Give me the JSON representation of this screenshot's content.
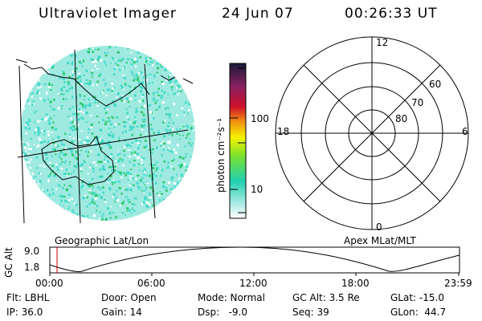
{
  "header": {
    "title": "Ultraviolet Imager",
    "date": "24 Jun 07",
    "time": "00:26:33 UT"
  },
  "colors": {
    "aurora_light": "#9eeae0",
    "aurora_cyan": "#3fd9c8",
    "aurora_green": "#2ec96e",
    "outline": "#000000",
    "cursor": "#d40000"
  },
  "colorbar": {
    "unit_label": "photon cm⁻²s⁻¹",
    "tick_100": "100",
    "tick_10": "10",
    "stops": [
      "#1a1a3a",
      "#8a2060",
      "#d0102a",
      "#f08a10",
      "#f4f400",
      "#78e030",
      "#20d0b0",
      "#a6eae2",
      "#ffffff"
    ]
  },
  "geo_panel": {
    "label": "Geographic Lat/Lon"
  },
  "polar_plot": {
    "label": "Apex MLat/MLT",
    "mlt_12": "12",
    "mlt_18": "18",
    "mlt_6": "6",
    "mlt_0": "0",
    "lat_60": "60",
    "lat_70": "70",
    "lat_80": "80"
  },
  "altitude_strip": {
    "axis_label": "GC Alt",
    "y_top": "9.0",
    "y_bottom": "1.8",
    "x_ticks": [
      "00:00",
      "06:00",
      "12:00",
      "18:00",
      "23:59"
    ]
  },
  "info": {
    "filter": "Flt: LBHL",
    "ip": "IP: 36.0",
    "door": "Door: Open",
    "gain": "Gain: 14",
    "mode": "Mode: Normal",
    "dsp": "Dsp:   -9.0",
    "gc_alt": "GC Alt: 3.5 Re",
    "seq": "Seq: 39",
    "glat": "GLat: -15.0",
    "glon": "GLon:  44.7"
  }
}
